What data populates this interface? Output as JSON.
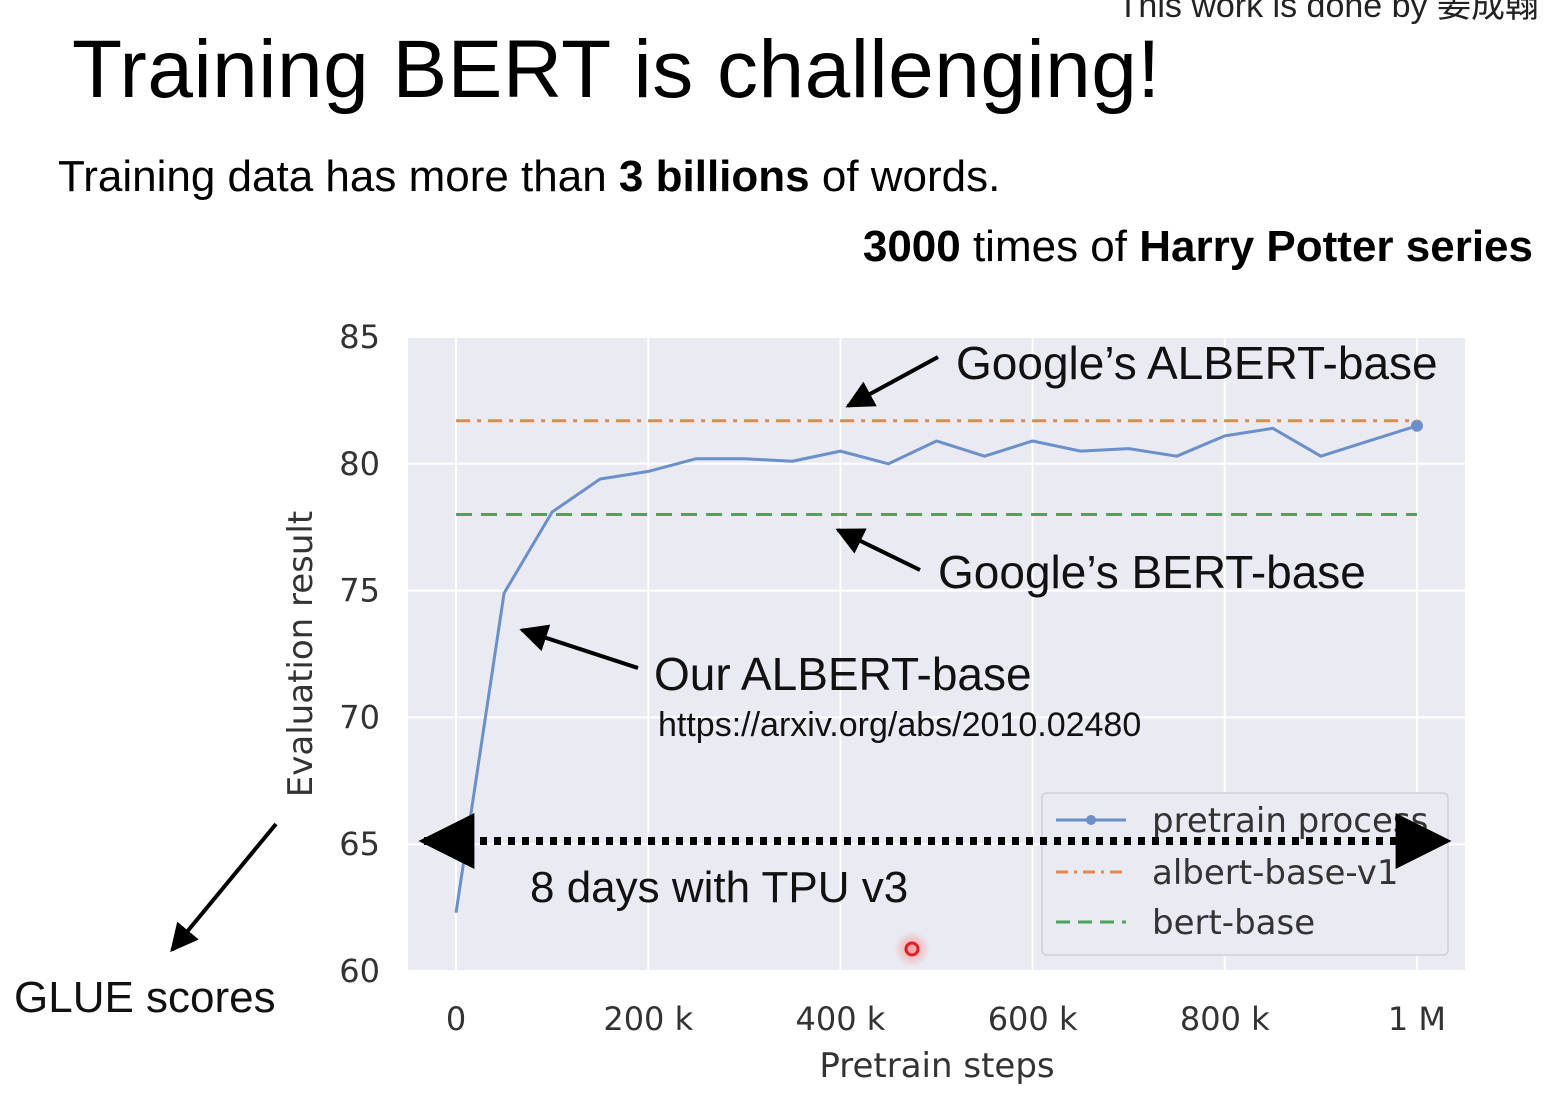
{
  "slide": {
    "credit": "This work is done by 姜成翰",
    "title": "Training BERT is challenging!",
    "subtitle_pre": "Training data has more than ",
    "subtitle_bold": "3 billions",
    "subtitle_post": " of words.",
    "comparison_bold1": "3000",
    "comparison_mid": " times of ",
    "comparison_bold2": "Harry Potter series"
  },
  "annotations": {
    "albert_google": "Google’s ALBERT-base",
    "bert_google": "Google’s BERT-base",
    "albert_ours": "Our ALBERT-base",
    "url": "https://arxiv.org/abs/2010.02480",
    "duration": "8 days with TPU v3",
    "glue": "GLUE scores"
  },
  "colors": {
    "plot_bg": "#eaeaf2",
    "grid": "#ffffff",
    "pretrain": "#6b8fc9",
    "albert": "#e5884f",
    "bert": "#4ca35c",
    "tick": "#333333",
    "cursor": "#e02020"
  },
  "chart_data": {
    "type": "line",
    "xlabel": "Pretrain steps",
    "ylabel": "Evaluation result",
    "xlim": [
      -50000,
      1050000
    ],
    "ylim": [
      60,
      85
    ],
    "x_ticks": [
      0,
      200000,
      400000,
      600000,
      800000,
      1000000
    ],
    "x_tick_labels": [
      "0",
      "200 k",
      "400 k",
      "600 k",
      "800 k",
      "1 M"
    ],
    "y_ticks": [
      60,
      65,
      70,
      75,
      80,
      85
    ],
    "y_tick_labels": [
      "60",
      "65",
      "70",
      "75",
      "80",
      "85"
    ],
    "grid": true,
    "legend_position": "bottom-right",
    "series": [
      {
        "name": "pretrain process",
        "style": "solid-with-endpoint-marker",
        "x": [
          0,
          50000,
          100000,
          150000,
          200000,
          250000,
          300000,
          350000,
          400000,
          450000,
          500000,
          550000,
          600000,
          650000,
          700000,
          750000,
          800000,
          850000,
          900000,
          950000,
          1000000
        ],
        "y": [
          62.3,
          74.9,
          78.1,
          79.4,
          79.7,
          80.2,
          80.2,
          80.1,
          80.5,
          80.0,
          80.9,
          80.3,
          80.9,
          80.5,
          80.6,
          80.3,
          81.1,
          81.4,
          80.3,
          80.9,
          81.5
        ]
      },
      {
        "name": "albert-base-v1",
        "style": "dash-dot",
        "x": [
          0,
          1000000
        ],
        "y": [
          81.7,
          81.7
        ]
      },
      {
        "name": "bert-base",
        "style": "dashed",
        "x": [
          0,
          1000000
        ],
        "y": [
          78.0,
          78.0
        ]
      }
    ]
  }
}
